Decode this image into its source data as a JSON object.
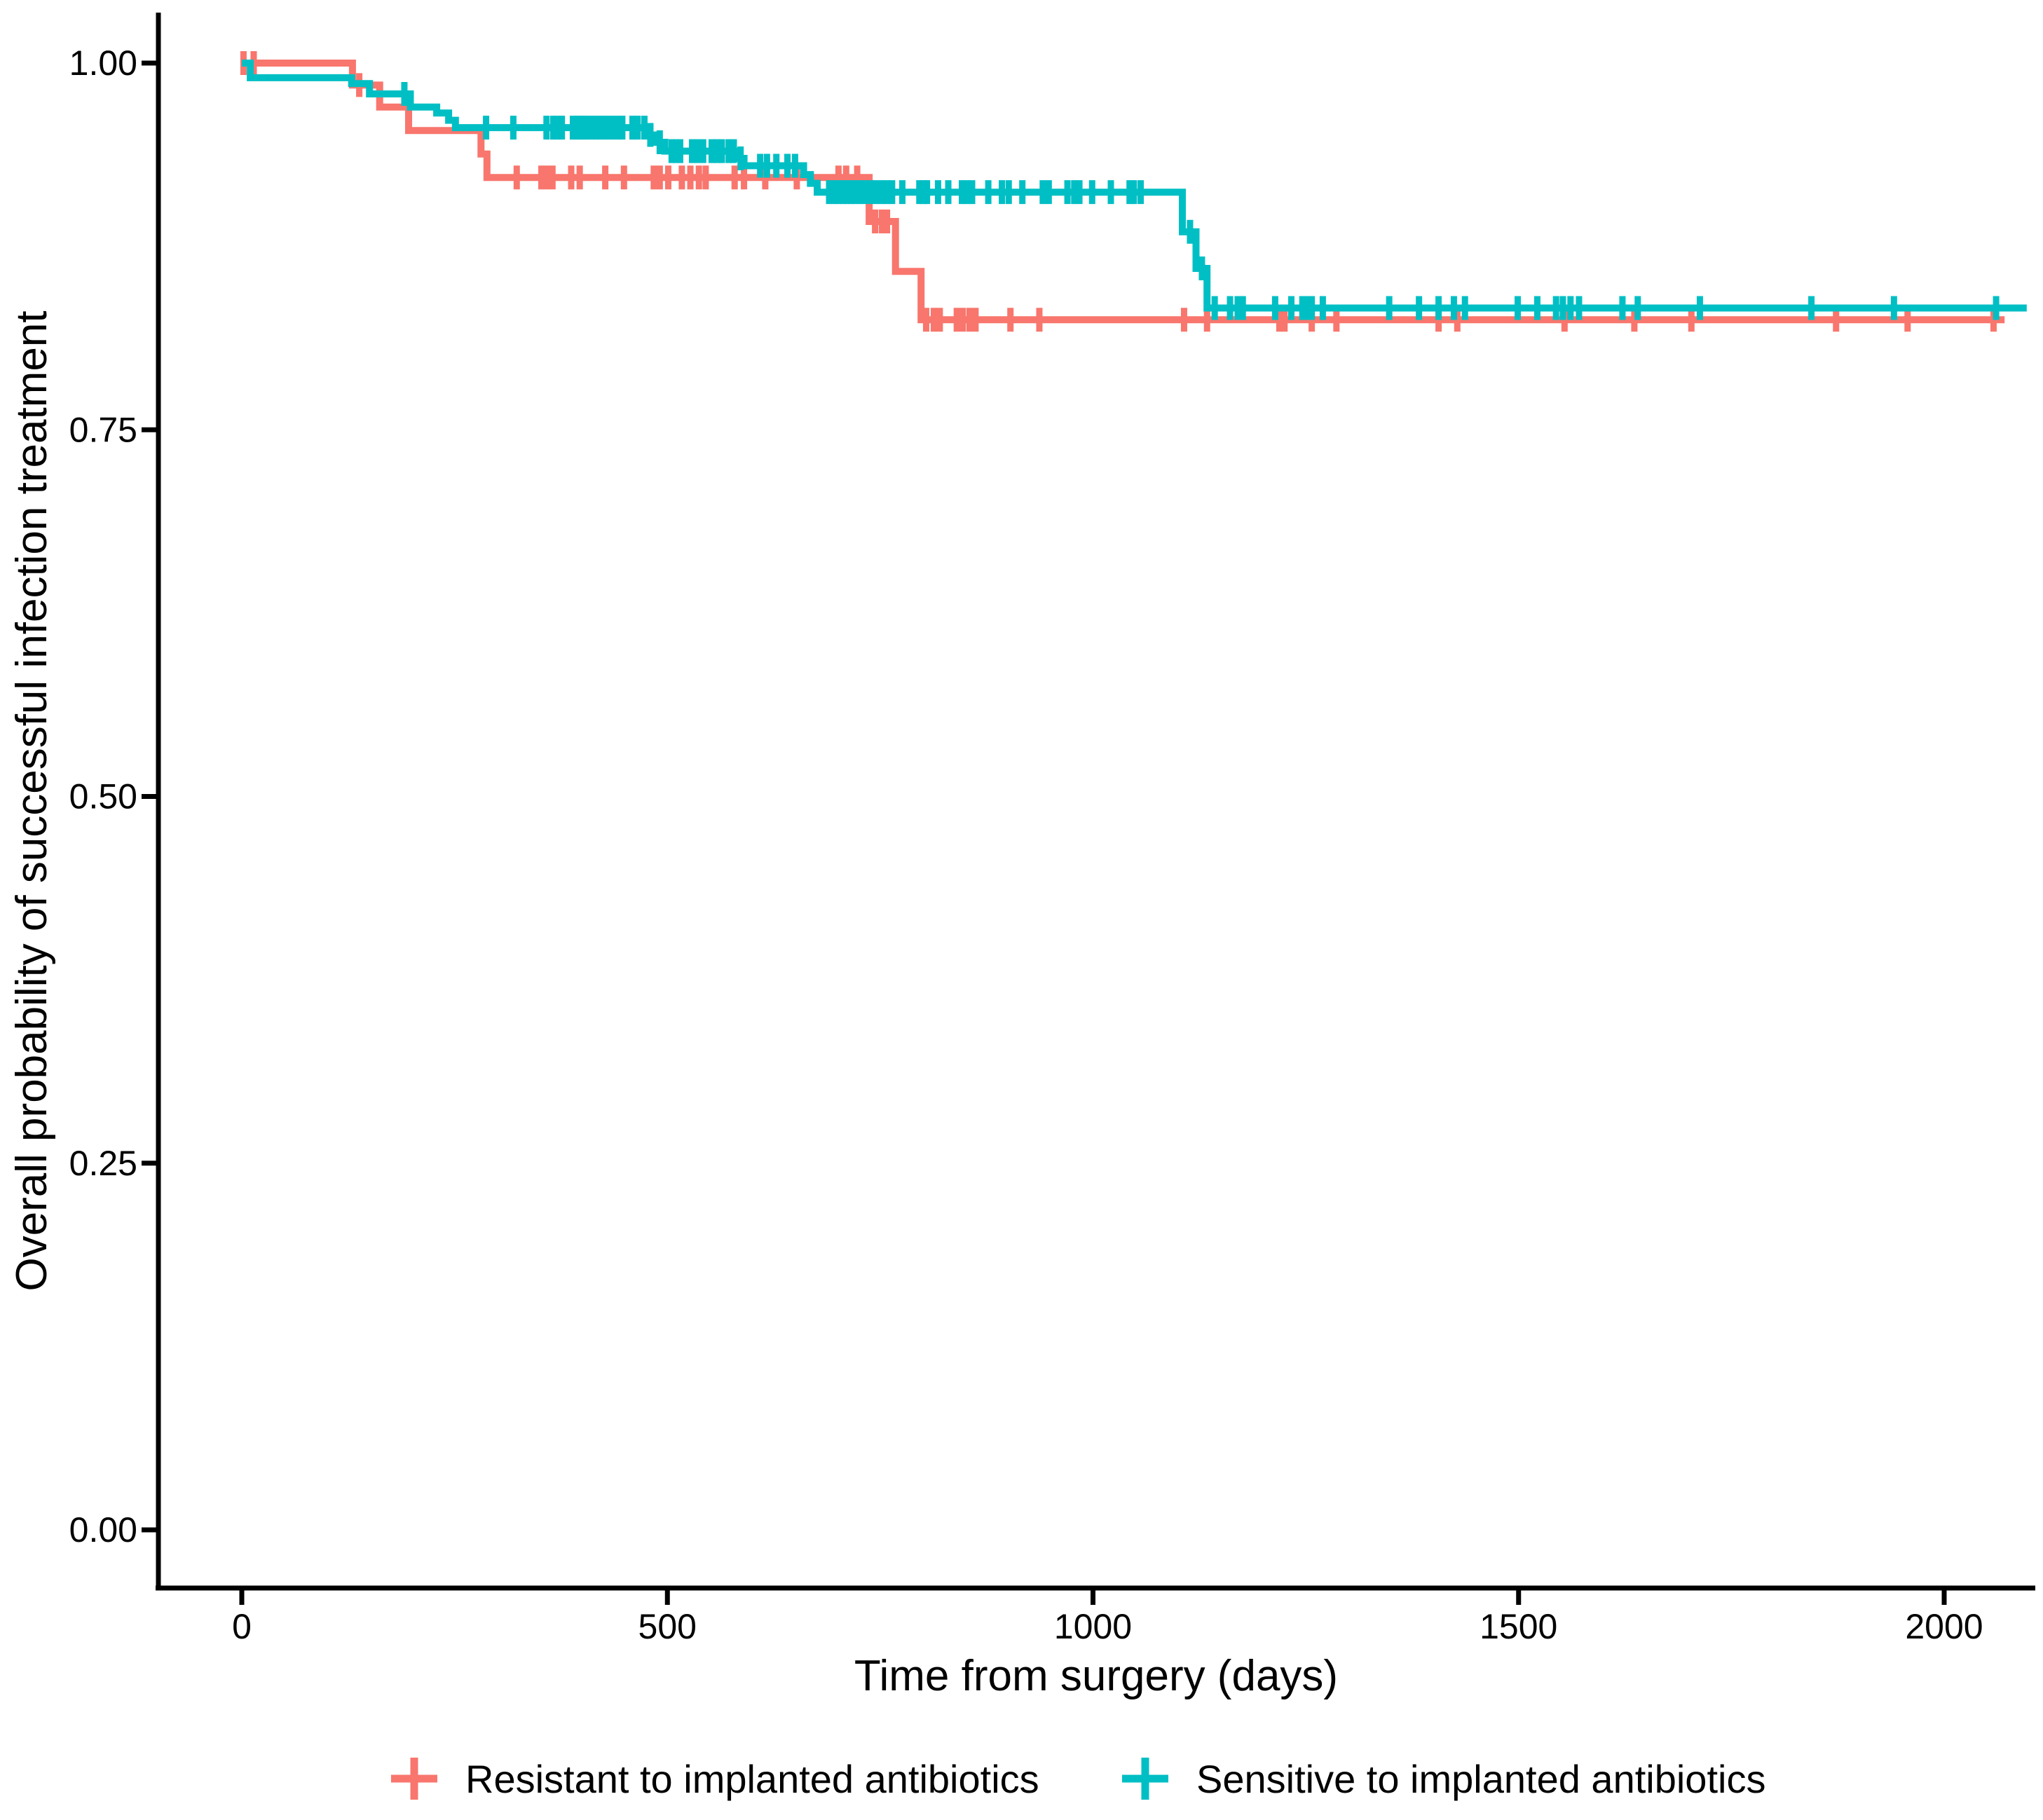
{
  "chart_data": {
    "type": "line",
    "subtype": "kaplan-meier-step",
    "title": "",
    "xlabel": "Time from surgery (days)",
    "ylabel": "Overall probability of successful infection treatment",
    "xlim": [
      0,
      2100
    ],
    "ylim": [
      0,
      1.0
    ],
    "grid": false,
    "legend_position": "bottom",
    "x_ticks": [
      {
        "value": 0,
        "label": "0"
      },
      {
        "value": 500,
        "label": "500"
      },
      {
        "value": 1000,
        "label": "1000"
      },
      {
        "value": 1500,
        "label": "1500"
      },
      {
        "value": 2000,
        "label": "2000"
      }
    ],
    "y_ticks": [
      {
        "value": 1.0,
        "label": "1.00"
      },
      {
        "value": 0.75,
        "label": "0.75"
      },
      {
        "value": 0.5,
        "label": "0.50"
      },
      {
        "value": 0.25,
        "label": "0.25"
      },
      {
        "value": 0.0,
        "label": "0.00"
      }
    ],
    "series": [
      {
        "name": "Resistant to implanted antibiotics",
        "color": "#F8766D",
        "end_day": 2071,
        "steps": [
          [
            0,
            1.0
          ],
          [
            130,
            0.985
          ],
          [
            162,
            0.97
          ],
          [
            196,
            0.954
          ],
          [
            281,
            0.938
          ],
          [
            288,
            0.922
          ],
          [
            737,
            0.892
          ],
          [
            768,
            0.858
          ],
          [
            798,
            0.825
          ]
        ],
        "censor_days": [
          2,
          14,
          138,
          323,
          352,
          358,
          365,
          387,
          397,
          427,
          449,
          484,
          491,
          501,
          517,
          527,
          537,
          545,
          579,
          590,
          615,
          652,
          701,
          710,
          723,
          744,
          752,
          758,
          804,
          813,
          820,
          840,
          847,
          855,
          862,
          903,
          937,
          1107,
          1134,
          1219,
          1225,
          1257,
          1286,
          1406,
          1428,
          1554,
          1636,
          1703,
          1873,
          1957,
          2058
        ]
      },
      {
        "name": "Sensitive to implanted antibiotics",
        "color": "#00BFC4",
        "end_day": 2097,
        "steps": [
          [
            0,
            1.0
          ],
          [
            10,
            0.99
          ],
          [
            129,
            0.986
          ],
          [
            150,
            0.979
          ],
          [
            198,
            0.97
          ],
          [
            229,
            0.966
          ],
          [
            243,
            0.961
          ],
          [
            251,
            0.956
          ],
          [
            475,
            0.951
          ],
          [
            486,
            0.946
          ],
          [
            497,
            0.94
          ],
          [
            582,
            0.935
          ],
          [
            590,
            0.93
          ],
          [
            660,
            0.924
          ],
          [
            668,
            0.918
          ],
          [
            676,
            0.912
          ],
          [
            1105,
            0.885
          ],
          [
            1121,
            0.86
          ],
          [
            1134,
            0.833
          ]
        ],
        "censor_days": [
          191,
          287,
          319,
          358,
          366,
          371,
          376,
          389,
          393,
          397,
          401,
          405,
          410,
          416,
          421,
          427,
          434,
          441,
          447,
          459,
          465,
          473,
          480,
          491,
          505,
          510,
          515,
          529,
          535,
          542,
          552,
          558,
          564,
          572,
          578,
          586,
          609,
          617,
          628,
          641,
          650,
          690,
          696,
          701,
          706,
          711,
          716,
          721,
          727,
          733,
          739,
          745,
          752,
          758,
          764,
          776,
          796,
          801,
          805,
          818,
          830,
          846,
          852,
          858,
          877,
          893,
          901,
          917,
          941,
          948,
          970,
          978,
          984,
          999,
          1021,
          1043,
          1048,
          1056,
          1114,
          1128,
          1143,
          1161,
          1170,
          1176,
          1214,
          1233,
          1246,
          1252,
          1257,
          1270,
          1348,
          1383,
          1406,
          1424,
          1437,
          1499,
          1522,
          1544,
          1552,
          1561,
          1571,
          1622,
          1640,
          1713,
          1844,
          1941,
          2061
        ]
      }
    ]
  },
  "legend": {
    "items": [
      {
        "label": "Resistant to implanted antibiotics",
        "color": "#F8766D",
        "symbol": "plus"
      },
      {
        "label": "Sensitive to implanted antibiotics",
        "color": "#00BFC4",
        "symbol": "plus"
      }
    ]
  }
}
